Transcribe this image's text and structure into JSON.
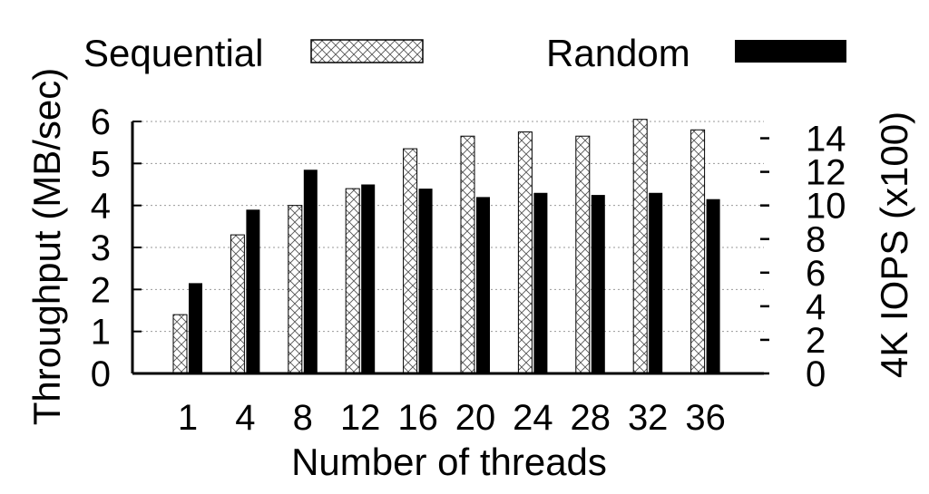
{
  "chart_data": {
    "type": "bar",
    "xlabel": "Number of threads",
    "ylabel": "Throughput (MB/sec)",
    "y2label": "4K IOPS (x100)",
    "categories": [
      "1",
      "4",
      "8",
      "12",
      "16",
      "20",
      "24",
      "28",
      "32",
      "36"
    ],
    "series": [
      {
        "name": "Sequential",
        "axis": "left",
        "pattern": "crosshatch",
        "values": [
          1.4,
          3.3,
          4.0,
          4.4,
          5.35,
          5.65,
          5.75,
          5.65,
          6.05,
          5.8
        ]
      },
      {
        "name": "Random",
        "axis": "left",
        "pattern": "solid",
        "values": [
          2.15,
          3.9,
          4.85,
          4.5,
          4.4,
          4.2,
          4.3,
          4.25,
          4.3,
          4.15
        ]
      }
    ],
    "ylim": [
      0,
      6
    ],
    "yticks": [
      "0",
      "1",
      "2",
      "3",
      "4",
      "5",
      "6"
    ],
    "y2ticks": [
      "0",
      "2",
      "4",
      "6",
      "8",
      "10",
      "12",
      "14"
    ],
    "grid": true,
    "legend_position": "top"
  }
}
